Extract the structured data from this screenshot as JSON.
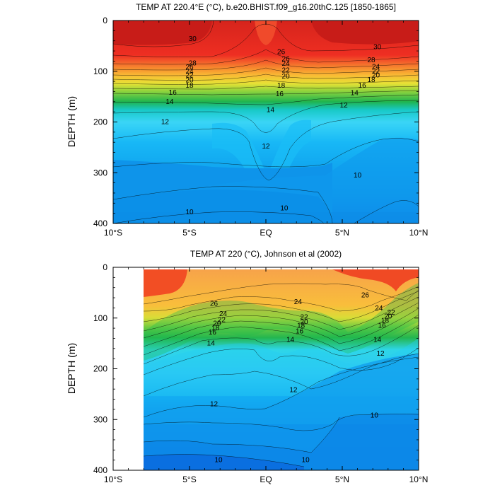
{
  "chart_data": [
    {
      "type": "contour",
      "title": "TEMP AT 220.4°E (°C), b.e20.BHIST.f09_g16.20thC.125 [1850-1865]",
      "xlabel": "",
      "ylabel": "DEPTH (m)",
      "xlim": [
        -10,
        10
      ],
      "ylim": [
        0,
        400
      ],
      "x_ticks": [
        -10,
        -5,
        0,
        5,
        10
      ],
      "x_tick_labels": [
        "10°S",
        "5°S",
        "EQ",
        "5°N",
        "10°N"
      ],
      "y_ticks": [
        0,
        100,
        200,
        300,
        400
      ],
      "y_tick_labels": [
        "0",
        "100",
        "200",
        "300",
        "400"
      ],
      "data_xmin": -10,
      "data_xmax": 10,
      "contour_labels": [
        {
          "text": "30",
          "x": -4.8,
          "y": 36
        },
        {
          "text": "30",
          "x": 7.3,
          "y": 52
        },
        {
          "text": "28",
          "x": -4.8,
          "y": 84
        },
        {
          "text": "26",
          "x": 1.0,
          "y": 62
        },
        {
          "text": "28",
          "x": 6.9,
          "y": 78
        },
        {
          "text": "26",
          "x": 1.3,
          "y": 76
        },
        {
          "text": "24",
          "x": 1.3,
          "y": 85
        },
        {
          "text": "22",
          "x": 1.3,
          "y": 98
        },
        {
          "text": "20",
          "x": 1.3,
          "y": 110
        },
        {
          "text": "18",
          "x": 1.0,
          "y": 128
        },
        {
          "text": "16",
          "x": 0.9,
          "y": 145
        },
        {
          "text": "14",
          "x": 0.3,
          "y": 176
        },
        {
          "text": "12",
          "x": 0.0,
          "y": 248
        },
        {
          "text": "10",
          "x": 1.2,
          "y": 370
        },
        {
          "text": "10",
          "x": -5.0,
          "y": 378
        },
        {
          "text": "12",
          "x": -6.6,
          "y": 200
        },
        {
          "text": "14",
          "x": -6.3,
          "y": 160
        },
        {
          "text": "16",
          "x": -6.1,
          "y": 142
        },
        {
          "text": "18",
          "x": -5.0,
          "y": 128
        },
        {
          "text": "20",
          "x": -5.0,
          "y": 118
        },
        {
          "text": "22",
          "x": -5.0,
          "y": 108
        },
        {
          "text": "24",
          "x": -5.0,
          "y": 100
        },
        {
          "text": "26",
          "x": -5.0,
          "y": 92
        },
        {
          "text": "12",
          "x": 5.1,
          "y": 167
        },
        {
          "text": "14",
          "x": 5.8,
          "y": 143
        },
        {
          "text": "16",
          "x": 6.3,
          "y": 128
        },
        {
          "text": "18",
          "x": 6.9,
          "y": 117
        },
        {
          "text": "20",
          "x": 7.2,
          "y": 108
        },
        {
          "text": "22",
          "x": 7.2,
          "y": 100
        },
        {
          "text": "24",
          "x": 7.2,
          "y": 91
        },
        {
          "text": "10",
          "x": 6.0,
          "y": 305
        }
      ]
    },
    {
      "type": "contour",
      "title": "TEMP AT 220 (°C), Johnson et al (2002)",
      "xlabel": "",
      "ylabel": "DEPTH (m)",
      "xlim": [
        -10,
        10
      ],
      "ylim": [
        0,
        400
      ],
      "x_ticks": [
        -10,
        -5,
        0,
        5,
        10
      ],
      "x_tick_labels": [
        "10°S",
        "5°S",
        "EQ",
        "5°N",
        "10°N"
      ],
      "y_ticks": [
        0,
        100,
        200,
        300,
        400
      ],
      "y_tick_labels": [
        "0",
        "100",
        "200",
        "300",
        "400"
      ],
      "data_xmin": -8,
      "data_xmax": 10,
      "contour_labels": [
        {
          "text": "26",
          "x": -3.4,
          "y": 72
        },
        {
          "text": "24",
          "x": -2.8,
          "y": 92
        },
        {
          "text": "22",
          "x": -2.9,
          "y": 104
        },
        {
          "text": "20",
          "x": -3.2,
          "y": 111
        },
        {
          "text": "18",
          "x": -3.3,
          "y": 120
        },
        {
          "text": "16",
          "x": -3.5,
          "y": 128
        },
        {
          "text": "14",
          "x": -3.6,
          "y": 150
        },
        {
          "text": "24",
          "x": 2.1,
          "y": 68
        },
        {
          "text": "26",
          "x": 6.5,
          "y": 55
        },
        {
          "text": "22",
          "x": 2.5,
          "y": 98
        },
        {
          "text": "20",
          "x": 2.5,
          "y": 108
        },
        {
          "text": "18",
          "x": 2.3,
          "y": 115
        },
        {
          "text": "16",
          "x": 2.2,
          "y": 126
        },
        {
          "text": "14",
          "x": 1.6,
          "y": 143
        },
        {
          "text": "12",
          "x": 7.5,
          "y": 170
        },
        {
          "text": "14",
          "x": 7.3,
          "y": 143
        },
        {
          "text": "16",
          "x": 7.6,
          "y": 115
        },
        {
          "text": "18",
          "x": 7.8,
          "y": 105
        },
        {
          "text": "20",
          "x": 8.0,
          "y": 97
        },
        {
          "text": "22",
          "x": 8.2,
          "y": 89
        },
        {
          "text": "24",
          "x": 7.4,
          "y": 81
        },
        {
          "text": "12",
          "x": 1.8,
          "y": 242
        },
        {
          "text": "12",
          "x": -3.4,
          "y": 270
        },
        {
          "text": "10",
          "x": 7.1,
          "y": 292
        },
        {
          "text": "10",
          "x": 2.6,
          "y": 380
        },
        {
          "text": "10",
          "x": -3.1,
          "y": 380
        }
      ]
    }
  ]
}
